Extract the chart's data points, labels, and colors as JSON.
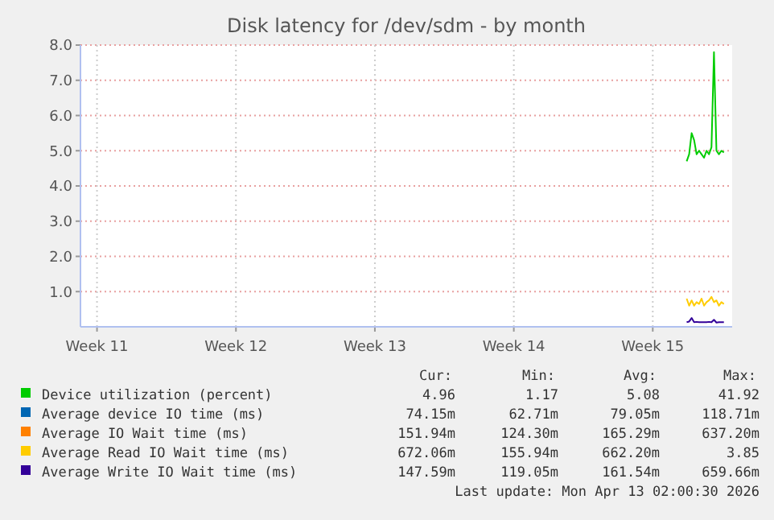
{
  "chart_data": {
    "type": "line",
    "title": "Disk latency for /dev/sdm - by month",
    "xlim": [
      "2026-03-11T16:00",
      "2026-04-13T12:00"
    ],
    "xticks": [
      {
        "value": "2026-03-12T12:00",
        "label": "Week 11"
      },
      {
        "value": "2026-03-19T12:00",
        "label": "Week 12"
      },
      {
        "value": "2026-03-26T12:00",
        "label": "Week 13"
      },
      {
        "value": "2026-04-02T12:00",
        "label": "Week 14"
      },
      {
        "value": "2026-04-09T12:00",
        "label": "Week 15"
      }
    ],
    "ylim": [
      0,
      8
    ],
    "yticks": [
      {
        "value": 1,
        "label": "1.0"
      },
      {
        "value": 2,
        "label": "2.0"
      },
      {
        "value": 3,
        "label": "3.0"
      },
      {
        "value": 4,
        "label": "4.0"
      },
      {
        "value": 5,
        "label": "5.0"
      },
      {
        "value": 6,
        "label": "6.0"
      },
      {
        "value": 7,
        "label": "7.0"
      },
      {
        "value": 8,
        "label": "8.0"
      }
    ],
    "grid": true,
    "legend": "bottom",
    "x": [
      "2026-04-11T05:00",
      "2026-04-11T08:00",
      "2026-04-11T11:00",
      "2026-04-11T14:00",
      "2026-04-11T17:00",
      "2026-04-11T20:00",
      "2026-04-11T23:00",
      "2026-04-12T02:00",
      "2026-04-12T05:00",
      "2026-04-12T08:00",
      "2026-04-12T11:00",
      "2026-04-12T14:00",
      "2026-04-12T17:00",
      "2026-04-12T20:00",
      "2026-04-12T23:00",
      "2026-04-13T02:00"
    ],
    "series": [
      {
        "name": "Device utilization (percent)",
        "color": "#00cc00",
        "values": [
          4.7,
          4.9,
          5.5,
          5.3,
          4.9,
          5.0,
          4.9,
          4.8,
          5.0,
          4.9,
          5.1,
          7.8,
          5.0,
          4.9,
          5.0,
          4.95
        ]
      },
      {
        "name": "Average device IO time (ms)",
        "color": "#0066b3",
        "values": [
          null,
          null,
          null,
          null,
          null,
          null,
          null,
          null,
          null,
          null,
          null,
          null,
          null,
          null,
          null,
          null
        ]
      },
      {
        "name": "Average IO Wait time (ms)",
        "color": "#ff8000",
        "values": [
          null,
          null,
          null,
          null,
          null,
          null,
          null,
          null,
          null,
          null,
          null,
          null,
          null,
          null,
          null,
          null
        ]
      },
      {
        "name": "Average Read IO Wait time (ms)",
        "color": "#ffcc00",
        "values": [
          0.8,
          0.6,
          0.75,
          0.6,
          0.7,
          0.65,
          0.8,
          0.6,
          0.7,
          0.75,
          0.85,
          0.7,
          0.75,
          0.6,
          0.7,
          0.65
        ]
      },
      {
        "name": "Average Write IO Wait time (ms)",
        "color": "#330099",
        "values": [
          0.13,
          0.15,
          0.25,
          0.13,
          0.14,
          0.13,
          0.13,
          0.13,
          0.13,
          0.14,
          0.13,
          0.2,
          0.12,
          0.13,
          0.13,
          0.13
        ]
      }
    ],
    "annotations": [
      "Cur:",
      "Min:",
      "Avg:",
      "Max:",
      "4.96",
      "1.17",
      "5.08",
      "41.92",
      "74.15m",
      "62.71m",
      "79.05m",
      "118.71m",
      "151.94m",
      "124.30m",
      "165.29m",
      "637.20m",
      "672.06m",
      "155.94m",
      "662.20m",
      "3.85",
      "147.59m",
      "119.05m",
      "161.54m",
      "659.66m",
      "Last update: Mon Apr 13 02:00:30 2026"
    ]
  }
}
